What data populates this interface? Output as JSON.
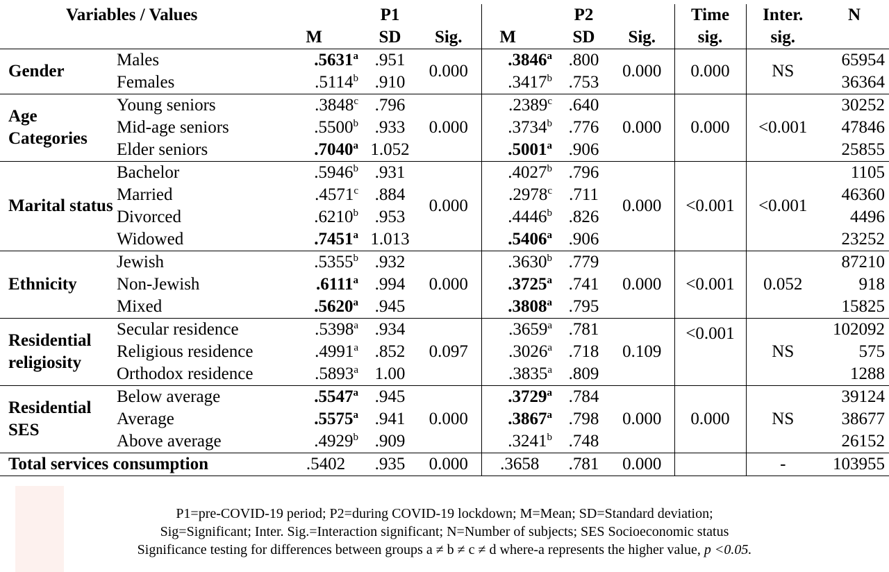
{
  "header": {
    "variables_values": "Variables  /  Values",
    "p1": "P1",
    "p2": "P2",
    "time": "Time",
    "time_sig": "sig.",
    "inter": "Inter.",
    "inter_sig": "sig.",
    "n": "N",
    "m": "M",
    "sd": "SD",
    "sig": "Sig."
  },
  "groups": [
    {
      "category": "Gender",
      "p1_sig": "0.000",
      "p2_sig": "0.000",
      "time_sig": "0.000",
      "inter_sig": "NS",
      "rows": [
        {
          "label": "Males",
          "p1_m": ".5631",
          "p1_sup": "a",
          "p1_bold": true,
          "p1_sd": ".951",
          "p2_m": ".3846",
          "p2_sup": "a",
          "p2_bold": true,
          "p2_sd": ".800",
          "n": "65954"
        },
        {
          "label": "Females",
          "p1_m": ".5114",
          "p1_sup": "b",
          "p1_bold": false,
          "p1_sd": ".910",
          "p2_m": ".3417",
          "p2_sup": "b",
          "p2_bold": false,
          "p2_sd": ".753",
          "n": "36364"
        }
      ]
    },
    {
      "category": "Age Categories",
      "p1_sig": "0.000",
      "p2_sig": "0.000",
      "time_sig": "0.000",
      "inter_sig": "<0.001",
      "rows": [
        {
          "label": "Young seniors",
          "p1_m": ".3848",
          "p1_sup": "c",
          "p1_bold": false,
          "p1_sd": ".796",
          "p2_m": ".2389",
          "p2_sup": "c",
          "p2_bold": false,
          "p2_sd": ".640",
          "n": "30252"
        },
        {
          "label": "Mid-age seniors",
          "p1_m": ".5500",
          "p1_sup": "b",
          "p1_bold": false,
          "p1_sd": ".933",
          "p2_m": ".3734",
          "p2_sup": "b",
          "p2_bold": false,
          "p2_sd": ".776",
          "n": "47846"
        },
        {
          "label": "Elder seniors",
          "p1_m": ".7040",
          "p1_sup": "a",
          "p1_bold": true,
          "p1_sd": "1.052",
          "p2_m": ".5001",
          "p2_sup": "a",
          "p2_bold": true,
          "p2_sd": ".906",
          "n": "25855"
        }
      ]
    },
    {
      "category": "Marital status",
      "p1_sig": "0.000",
      "p2_sig": "0.000",
      "time_sig": "<0.001",
      "inter_sig": "<0.001",
      "rows": [
        {
          "label": "Bachelor",
          "p1_m": ".5946",
          "p1_sup": "b",
          "p1_bold": false,
          "p1_sd": ".931",
          "p2_m": ".4027",
          "p2_sup": "b",
          "p2_bold": false,
          "p2_sd": ".796",
          "n": "1105"
        },
        {
          "label": "Married",
          "p1_m": ".4571",
          "p1_sup": "c",
          "p1_bold": false,
          "p1_sd": ".884",
          "p2_m": ".2978",
          "p2_sup": "c",
          "p2_bold": false,
          "p2_sd": ".711",
          "n": "46360"
        },
        {
          "label": "Divorced",
          "p1_m": ".6210",
          "p1_sup": "b",
          "p1_bold": false,
          "p1_sd": ".953",
          "p2_m": ".4446",
          "p2_sup": "b",
          "p2_bold": false,
          "p2_sd": ".826",
          "n": "4496"
        },
        {
          "label": "Widowed",
          "p1_m": ".7451",
          "p1_sup": "a",
          "p1_bold": true,
          "p1_sd": "1.013",
          "p2_m": ".5406",
          "p2_sup": "a",
          "p2_bold": true,
          "p2_sd": ".906",
          "n": "23252"
        }
      ]
    },
    {
      "category": "Ethnicity",
      "p1_sig": "0.000",
      "p2_sig": "0.000",
      "time_sig": "<0.001",
      "inter_sig": "0.052",
      "rows": [
        {
          "label": "Jewish",
          "p1_m": ".5355",
          "p1_sup": "b",
          "p1_bold": false,
          "p1_sd": ".932",
          "p2_m": ".3630",
          "p2_sup": "b",
          "p2_bold": false,
          "p2_sd": ".779",
          "n": "87210"
        },
        {
          "label": "Non-Jewish",
          "p1_m": ".6111",
          "p1_sup": "a",
          "p1_bold": true,
          "p1_sd": ".994",
          "p2_m": ".3725",
          "p2_sup": "a",
          "p2_bold": true,
          "p2_sd": ".741",
          "n": "918"
        },
        {
          "label": "Mixed",
          "p1_m": ".5620",
          "p1_sup": "a",
          "p1_bold": true,
          "p1_sd": ".945",
          "p2_m": ".3808",
          "p2_sup": "a",
          "p2_bold": true,
          "p2_sd": ".795",
          "n": "15825"
        }
      ]
    },
    {
      "category": "Residential religiosity",
      "p1_sig": "0.097",
      "p2_sig": "0.109",
      "time_sig": "<0.001",
      "inter_sig": "NS",
      "rows": [
        {
          "label": "Secular residence",
          "p1_m": ".5398",
          "p1_sup": "a",
          "p1_bold": false,
          "p1_sd": ".934",
          "p2_m": ".3659",
          "p2_sup": "a",
          "p2_bold": false,
          "p2_sd": ".781",
          "n": "102092"
        },
        {
          "label": "Religious residence",
          "p1_m": ".4991",
          "p1_sup": "a",
          "p1_bold": false,
          "p1_sd": ".852",
          "p2_m": ".3026",
          "p2_sup": "a",
          "p2_bold": false,
          "p2_sd": ".718",
          "n": "575"
        },
        {
          "label": "Orthodox residence",
          "p1_m": ".5893",
          "p1_sup": "a",
          "p1_bold": false,
          "p1_sd": "1.00",
          "p2_m": ".3835",
          "p2_sup": "a",
          "p2_bold": false,
          "p2_sd": ".809",
          "n": "1288"
        }
      ]
    },
    {
      "category": "Residential SES",
      "p1_sig": "0.000",
      "p2_sig": "0.000",
      "time_sig": "0.000",
      "inter_sig": "NS",
      "rows": [
        {
          "label": "Below average",
          "p1_m": ".5547",
          "p1_sup": "a",
          "p1_bold": true,
          "p1_sd": ".945",
          "p2_m": ".3729",
          "p2_sup": "a",
          "p2_bold": true,
          "p2_sd": ".784",
          "n": "39124"
        },
        {
          "label": "Average",
          "p1_m": ".5575",
          "p1_sup": "a",
          "p1_bold": true,
          "p1_sd": ".941",
          "p2_m": ".3867",
          "p2_sup": "a",
          "p2_bold": true,
          "p2_sd": ".798",
          "n": "38677"
        },
        {
          "label": "Above average",
          "p1_m": ".4929",
          "p1_sup": "b",
          "p1_bold": false,
          "p1_sd": ".909",
          "p2_m": ".3241",
          "p2_sup": "b",
          "p2_bold": false,
          "p2_sd": ".748",
          "n": "26152"
        }
      ]
    }
  ],
  "total": {
    "label": "Total services consumption",
    "p1_m": ".5402",
    "p1_sd": ".935",
    "p1_sig": "0.000",
    "p2_m": ".3658",
    "p2_sd": ".781",
    "p2_sig": "0.000",
    "time_sig": "",
    "inter_sig": "-",
    "n": "103955"
  },
  "notes": {
    "line1": "P1=pre-COVID-19 period; P2=during COVID-19 lockdown; M=Mean; SD=Standard deviation;",
    "line2": "Sig=Significant; Inter. Sig.=Interaction significant; N=Number of subjects; SES Socioeconomic status",
    "line3": "Significance testing for differences between groups a ≠ b ≠ c ≠ d where-a represents the higher value,",
    "line3_p": "p <0.05."
  }
}
